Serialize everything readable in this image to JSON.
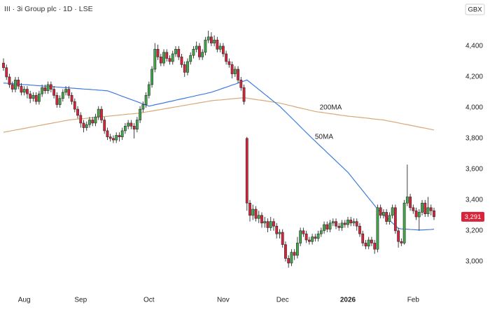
{
  "chart_data": {
    "type": "candlestick",
    "title": "III · 3i Group plc · 1D · LSE",
    "currency": "GBX",
    "categories": [
      null,
      null,
      null,
      null,
      null,
      null,
      null,
      "Aug",
      null,
      null,
      null,
      null,
      null,
      null,
      null,
      null,
      null,
      null,
      null,
      null,
      null,
      null,
      null,
      null,
      null,
      null,
      "Sep",
      null,
      null,
      null,
      null,
      null,
      null,
      null,
      null,
      null,
      null,
      null,
      null,
      null,
      null,
      null,
      null,
      null,
      null,
      null,
      null,
      null,
      null,
      "Oct",
      null,
      null,
      null,
      null,
      null,
      null,
      null,
      null,
      null,
      null,
      null,
      null,
      null,
      null,
      null,
      null,
      null,
      null,
      null,
      null,
      null,
      null,
      null,
      null,
      "Nov",
      null,
      null,
      null,
      null,
      null,
      null,
      null,
      null,
      null,
      null,
      null,
      null,
      null,
      null,
      null,
      null,
      null,
      null,
      null,
      "Dec",
      null,
      null,
      null,
      null,
      null,
      null,
      null,
      null,
      null,
      null,
      null,
      null,
      null,
      null,
      null,
      null,
      null,
      null,
      null,
      null,
      null,
      "2026",
      null,
      null,
      null,
      null,
      null,
      null,
      null,
      null,
      null,
      null,
      null,
      null,
      null,
      null,
      null,
      null,
      null,
      null,
      null,
      null,
      null,
      "Feb",
      null,
      null,
      null,
      null,
      null,
      null,
      null
    ],
    "ohlc": {
      "open": [
        4290,
        4260,
        4200,
        4150,
        4120,
        4180,
        4140,
        4100,
        4120,
        4090,
        4060,
        4080,
        4040,
        4090,
        4130,
        4110,
        4150,
        4120,
        4080,
        4020,
        4060,
        4100,
        4120,
        4080,
        4040,
        3990,
        3950,
        3900,
        3870,
        3890,
        3920,
        3900,
        3940,
        3990,
        3920,
        3850,
        3810,
        3800,
        3790,
        3820,
        3810,
        3850,
        3880,
        3900,
        3880,
        3860,
        3920,
        3990,
        4020,
        4080,
        4150,
        4250,
        4380,
        4330,
        4290,
        4360,
        4320,
        4300,
        4350,
        4380,
        4330,
        4280,
        4230,
        4300,
        4340,
        4380,
        4400,
        4330,
        4360,
        4440,
        4460,
        4420,
        4440,
        4380,
        4400,
        4350,
        4300,
        4280,
        4220,
        4250,
        4180,
        4130,
        3800,
        3380,
        3300,
        3340,
        3280,
        3300,
        3250,
        3260,
        3220,
        3260,
        3230,
        3180,
        3190,
        3110,
        3020,
        2990,
        3060,
        3040,
        3120,
        3200,
        3180,
        3140,
        3130,
        3160,
        3150,
        3180,
        3200,
        3240,
        3210,
        3250,
        3260,
        3230,
        3220,
        3250,
        3240,
        3270,
        3250,
        3260,
        3230,
        3180,
        3120,
        3100,
        3140,
        3120,
        3080,
        3350,
        3300,
        3320,
        3260,
        3300,
        3350,
        3200,
        3130,
        3120,
        3380,
        3420,
        3350,
        3330,
        3290,
        3320,
        3380,
        3310,
        3350,
        3330
      ],
      "high": [
        4320,
        4280,
        4220,
        4170,
        4200,
        4200,
        4160,
        4140,
        4140,
        4110,
        4100,
        4100,
        4110,
        4150,
        4150,
        4170,
        4170,
        4140,
        4100,
        4080,
        4120,
        4140,
        4140,
        4100,
        4060,
        4010,
        3970,
        3920,
        3910,
        3940,
        3940,
        3960,
        4010,
        4010,
        3940,
        3870,
        3830,
        3820,
        3840,
        3840,
        3870,
        3900,
        3920,
        3920,
        3900,
        3940,
        4010,
        4040,
        4100,
        4170,
        4270,
        4420,
        4410,
        4350,
        4380,
        4380,
        4340,
        4370,
        4400,
        4400,
        4350,
        4300,
        4320,
        4360,
        4400,
        4430,
        4420,
        4380,
        4460,
        4500,
        4490,
        4470,
        4460,
        4420,
        4420,
        4370,
        4320,
        4300,
        4270,
        4270,
        4200,
        4150,
        3810,
        3400,
        3370,
        3360,
        3330,
        3320,
        3290,
        3280,
        3290,
        3280,
        3250,
        3210,
        3210,
        3130,
        3040,
        3080,
        3080,
        3160,
        3220,
        3220,
        3200,
        3160,
        3180,
        3180,
        3200,
        3220,
        3260,
        3260,
        3270,
        3280,
        3280,
        3250,
        3270,
        3270,
        3290,
        3290,
        3280,
        3280,
        3250,
        3200,
        3140,
        3160,
        3160,
        3140,
        3370,
        3370,
        3340,
        3340,
        3320,
        3370,
        3370,
        3220,
        3150,
        3400,
        3630,
        3440,
        3370,
        3350,
        3340,
        3400,
        3400,
        3420,
        3370,
        3350
      ],
      "low": [
        4240,
        4180,
        4130,
        4100,
        4100,
        4120,
        4080,
        4080,
        4060,
        4030,
        4040,
        4020,
        4020,
        4070,
        4090,
        4090,
        4100,
        4060,
        4000,
        4000,
        4040,
        4080,
        4060,
        4020,
        3970,
        3930,
        3870,
        3840,
        3850,
        3870,
        3880,
        3880,
        3920,
        3900,
        3830,
        3790,
        3780,
        3770,
        3770,
        3780,
        3790,
        3830,
        3860,
        3860,
        3800,
        3840,
        3900,
        3970,
        4000,
        4060,
        4130,
        4230,
        4310,
        4270,
        4270,
        4300,
        4280,
        4280,
        4330,
        4310,
        4260,
        4200,
        4210,
        4280,
        4320,
        4360,
        4310,
        4310,
        4340,
        4420,
        4400,
        4400,
        4360,
        4360,
        4330,
        4280,
        4260,
        4190,
        4200,
        4160,
        4110,
        4020,
        3330,
        3260,
        3270,
        3260,
        3250,
        3220,
        3220,
        3190,
        3200,
        3200,
        3150,
        3150,
        3090,
        3000,
        2960,
        2970,
        3010,
        3020,
        3100,
        3160,
        3120,
        3110,
        3110,
        3130,
        3130,
        3160,
        3180,
        3190,
        3190,
        3230,
        3210,
        3200,
        3200,
        3220,
        3220,
        3230,
        3230,
        3200,
        3160,
        3100,
        3080,
        3080,
        3100,
        3050,
        3060,
        3280,
        3280,
        3240,
        3240,
        3280,
        3180,
        3090,
        3100,
        3110,
        3360,
        3330,
        3310,
        3270,
        3200,
        3300,
        3290,
        3290,
        3300,
        3270
      ],
      "close": [
        4260,
        4200,
        4150,
        4120,
        4180,
        4140,
        4100,
        4120,
        4090,
        4060,
        4080,
        4040,
        4090,
        4130,
        4110,
        4150,
        4120,
        4080,
        4020,
        4060,
        4100,
        4120,
        4080,
        4040,
        3990,
        3950,
        3900,
        3870,
        3890,
        3920,
        3900,
        3940,
        3990,
        3920,
        3850,
        3810,
        3800,
        3790,
        3820,
        3810,
        3850,
        3880,
        3900,
        3880,
        3860,
        3920,
        3990,
        4020,
        4080,
        4150,
        4250,
        4380,
        4330,
        4290,
        4360,
        4320,
        4300,
        4350,
        4380,
        4330,
        4280,
        4230,
        4300,
        4340,
        4380,
        4400,
        4330,
        4360,
        4440,
        4460,
        4420,
        4440,
        4380,
        4400,
        4350,
        4300,
        4280,
        4220,
        4250,
        4180,
        4130,
        4040,
        3380,
        3300,
        3340,
        3280,
        3300,
        3250,
        3260,
        3220,
        3260,
        3230,
        3180,
        3190,
        3110,
        3020,
        2990,
        3060,
        3040,
        3120,
        3200,
        3180,
        3140,
        3130,
        3160,
        3150,
        3180,
        3200,
        3240,
        3210,
        3250,
        3260,
        3230,
        3220,
        3250,
        3240,
        3270,
        3250,
        3260,
        3230,
        3180,
        3120,
        3100,
        3140,
        3120,
        3080,
        3350,
        3300,
        3320,
        3260,
        3300,
        3350,
        3200,
        3130,
        3120,
        3380,
        3420,
        3350,
        3330,
        3290,
        3320,
        3380,
        3310,
        3350,
        3330,
        3291
      ]
    },
    "up_color": "#43a84a",
    "down_color": "#d8243a",
    "lines": [
      {
        "name": "200MA",
        "color": "#d9a877",
        "values": [
          3840,
          3844,
          3847,
          3851,
          3855,
          3858,
          3862,
          3865,
          3869,
          3873,
          3876,
          3880,
          3884,
          3887,
          3891,
          3895,
          3898,
          3902,
          3905,
          3909,
          3913,
          3916,
          3920,
          3922,
          3924,
          3926,
          3928,
          3929,
          3931,
          3933,
          3935,
          3937,
          3939,
          3941,
          3943,
          3944,
          3946,
          3948,
          3950,
          3952,
          3954,
          3956,
          3958,
          3959,
          3961,
          3963,
          3965,
          3968,
          3972,
          3975,
          3978,
          3982,
          3985,
          3988,
          3992,
          3995,
          3998,
          4002,
          4005,
          4008,
          4012,
          4015,
          4018,
          4022,
          4025,
          4028,
          4032,
          4035,
          4038,
          4042,
          4045,
          4047,
          4049,
          4050,
          4052,
          4054,
          4056,
          4058,
          4060,
          4061,
          4063,
          4065,
          4062,
          4059,
          4056,
          4053,
          4050,
          4048,
          4045,
          4042,
          4039,
          4036,
          4033,
          4030,
          4025,
          4021,
          4016,
          4012,
          4007,
          4002,
          3998,
          3993,
          3989,
          3984,
          3980,
          3975,
          3972,
          3970,
          3967,
          3964,
          3961,
          3959,
          3956,
          3953,
          3950,
          3948,
          3945,
          3943,
          3941,
          3939,
          3937,
          3935,
          3933,
          3931,
          3928,
          3926,
          3924,
          3922,
          3920,
          3916,
          3912,
          3909,
          3905,
          3901,
          3897,
          3893,
          3890,
          3886,
          3882,
          3878,
          3874,
          3870,
          3867,
          3863,
          3859,
          3855
        ]
      },
      {
        "name": "50MA",
        "color": "#3f7be0",
        "values": [
          4160,
          4159,
          4157,
          4156,
          4154,
          4153,
          4151,
          4150,
          4149,
          4147,
          4146,
          4144,
          4143,
          4141,
          4140,
          4139,
          4137,
          4136,
          4134,
          4133,
          4131,
          4130,
          4129,
          4127,
          4126,
          4124,
          4123,
          4121,
          4120,
          4119,
          4117,
          4116,
          4114,
          4113,
          4111,
          4110,
          4103,
          4096,
          4089,
          4081,
          4074,
          4067,
          4060,
          4053,
          4046,
          4039,
          4031,
          4024,
          4017,
          4010,
          4014,
          4019,
          4023,
          4027,
          4031,
          4036,
          4040,
          4044,
          4049,
          4053,
          4057,
          4061,
          4066,
          4070,
          4074,
          4079,
          4083,
          4087,
          4091,
          4096,
          4100,
          4107,
          4113,
          4120,
          4127,
          4133,
          4140,
          4147,
          4153,
          4160,
          4167,
          4173,
          4180,
          4165,
          4149,
          4134,
          4118,
          4103,
          4087,
          4072,
          4056,
          4041,
          4025,
          4010,
          3991,
          3972,
          3953,
          3934,
          3915,
          3896,
          3876,
          3857,
          3838,
          3819,
          3800,
          3782,
          3763,
          3745,
          3727,
          3708,
          3690,
          3672,
          3653,
          3635,
          3617,
          3598,
          3580,
          3556,
          3532,
          3508,
          3484,
          3460,
          3436,
          3412,
          3388,
          3364,
          3340,
          3322,
          3304,
          3286,
          3269,
          3251,
          3233,
          3215,
          3212,
          3211,
          3210,
          3208,
          3207,
          3206,
          3205,
          3205,
          3206,
          3207,
          3208,
          3210
        ]
      }
    ],
    "last_price": {
      "value": 3291,
      "label": "3,291"
    },
    "ylim": [
      2790,
      4700
    ],
    "yticks": [
      {
        "value": 3000,
        "label": "3,000"
      },
      {
        "value": 3200,
        "label": "3,200"
      },
      {
        "value": 3400,
        "label": "3,400"
      },
      {
        "value": 3600,
        "label": "3,600"
      },
      {
        "value": 3800,
        "label": "3,800"
      },
      {
        "value": 4000,
        "label": "4,000"
      },
      {
        "value": 4200,
        "label": "4,200"
      },
      {
        "value": 4400,
        "label": "4,400"
      }
    ]
  }
}
